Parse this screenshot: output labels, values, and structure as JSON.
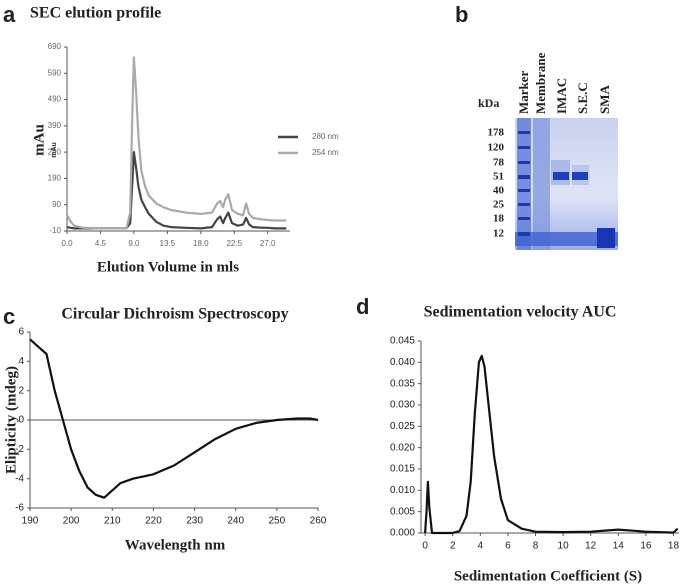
{
  "figure": {
    "panel_labels": [
      "a",
      "b",
      "c",
      "d"
    ]
  },
  "gel": {
    "unit_label": "kDa",
    "ladder": [
      178,
      120,
      78,
      51,
      40,
      25,
      18,
      12
    ],
    "lanes": [
      "Marker",
      "Membrane",
      "IMAC",
      "S.E.C",
      "SMA"
    ]
  },
  "chart_data": [
    {
      "type": "line",
      "title": "SEC elution profile",
      "y_label": "mAu",
      "y_label_small": "mAu",
      "x_label": "Elution Volume in mls",
      "x": [
        0,
        0.5,
        1,
        2,
        4,
        6,
        8,
        8.5,
        8.8,
        9.0,
        9.3,
        9.6,
        10,
        10.5,
        11,
        12,
        13,
        14,
        16,
        18,
        19.5,
        20.2,
        20.6,
        21.0,
        21.3,
        21.7,
        22.2,
        23,
        23.7,
        24.1,
        24.5,
        25,
        26,
        27,
        28,
        29.5
      ],
      "series": [
        {
          "name": "280 nm",
          "color": "#444444",
          "values": [
            5,
            2,
            0,
            0,
            0,
            0,
            0,
            20,
            180,
            290,
            230,
            160,
            110,
            80,
            55,
            25,
            10,
            5,
            2,
            0,
            5,
            35,
            45,
            20,
            40,
            60,
            20,
            10,
            15,
            40,
            15,
            5,
            3,
            2,
            0,
            0
          ]
        },
        {
          "name": "254 nm",
          "color": "#aaaaaa",
          "values": [
            50,
            25,
            10,
            3,
            0,
            0,
            0,
            60,
            450,
            650,
            520,
            350,
            220,
            160,
            125,
            95,
            80,
            70,
            60,
            55,
            60,
            95,
            105,
            80,
            110,
            130,
            70,
            55,
            50,
            95,
            55,
            40,
            35,
            32,
            30,
            30
          ]
        }
      ],
      "xlim": [
        0,
        30
      ],
      "ylim": [
        -10,
        690
      ],
      "xticks": [
        {
          "value": 0,
          "label": "0.0"
        },
        4.5,
        {
          "value": 9,
          "label": "9.0"
        },
        13.5,
        {
          "value": 18,
          "label": "18.0"
        },
        22.5,
        {
          "value": 27,
          "label": "27.0"
        }
      ],
      "yticks": [
        -10,
        90,
        190,
        290,
        390,
        490,
        590,
        690
      ],
      "legend": "right"
    },
    {
      "type": "line",
      "title": "Circular Dichroism Spectroscopy",
      "y_label": "Elipticity (mdeg)",
      "x_label": "Wavelength nm",
      "x": [
        190,
        192,
        194,
        196,
        198,
        200,
        202,
        204,
        206,
        208,
        210,
        212,
        215,
        220,
        225,
        230,
        235,
        240,
        245,
        250,
        255,
        258,
        260
      ],
      "series": [
        {
          "color": "#111111",
          "values": [
            5.5,
            5,
            4.5,
            2,
            0,
            -2,
            -3.5,
            -4.6,
            -5.1,
            -5.3,
            -4.8,
            -4.3,
            -4,
            -3.7,
            -3.1,
            -2.2,
            -1.3,
            -0.6,
            -0.2,
            0,
            0.1,
            0.1,
            0
          ]
        }
      ],
      "xlim": [
        190,
        260
      ],
      "ylim": [
        -6,
        6
      ],
      "xticks": [
        190,
        200,
        210,
        220,
        230,
        240,
        250,
        260
      ],
      "yticks": [
        -6,
        -4,
        -2,
        0,
        2,
        4,
        6
      ],
      "zero_line": true
    },
    {
      "type": "line",
      "title": "Sedimentation velocity AUC",
      "x_label": "Sedimentation Coefficient (S)",
      "x": [
        0,
        0.1,
        0.2,
        0.3,
        0.5,
        1,
        2,
        2.5,
        3,
        3.3,
        3.6,
        3.9,
        4.1,
        4.3,
        4.6,
        5,
        5.5,
        6,
        7,
        8,
        10,
        12,
        14,
        16,
        18,
        18.3
      ],
      "series": [
        {
          "color": "#111111",
          "values": [
            0,
            0.005,
            0.012,
            0.006,
            0,
            0,
            0,
            0.0005,
            0.004,
            0.012,
            0.028,
            0.04,
            0.0415,
            0.039,
            0.03,
            0.018,
            0.008,
            0.003,
            0.001,
            0.0003,
            0.0002,
            0.0003,
            0.0008,
            0.0003,
            0.0001,
            0.001
          ]
        }
      ],
      "xlim": [
        -0.3,
        18.4
      ],
      "ylim": [
        0,
        0.045
      ],
      "xticks": [
        0,
        2,
        4,
        6,
        8,
        10,
        12,
        14,
        16,
        18
      ],
      "yticks": [
        {
          "value": 0,
          "label": "0.000"
        },
        0.005,
        {
          "value": 0.01,
          "label": "0.010"
        },
        0.015,
        {
          "value": 0.02,
          "label": "0.020"
        },
        0.025,
        {
          "value": 0.03,
          "label": "0.030"
        },
        0.035,
        {
          "value": 0.04,
          "label": "0.040"
        },
        0.045
      ]
    }
  ]
}
